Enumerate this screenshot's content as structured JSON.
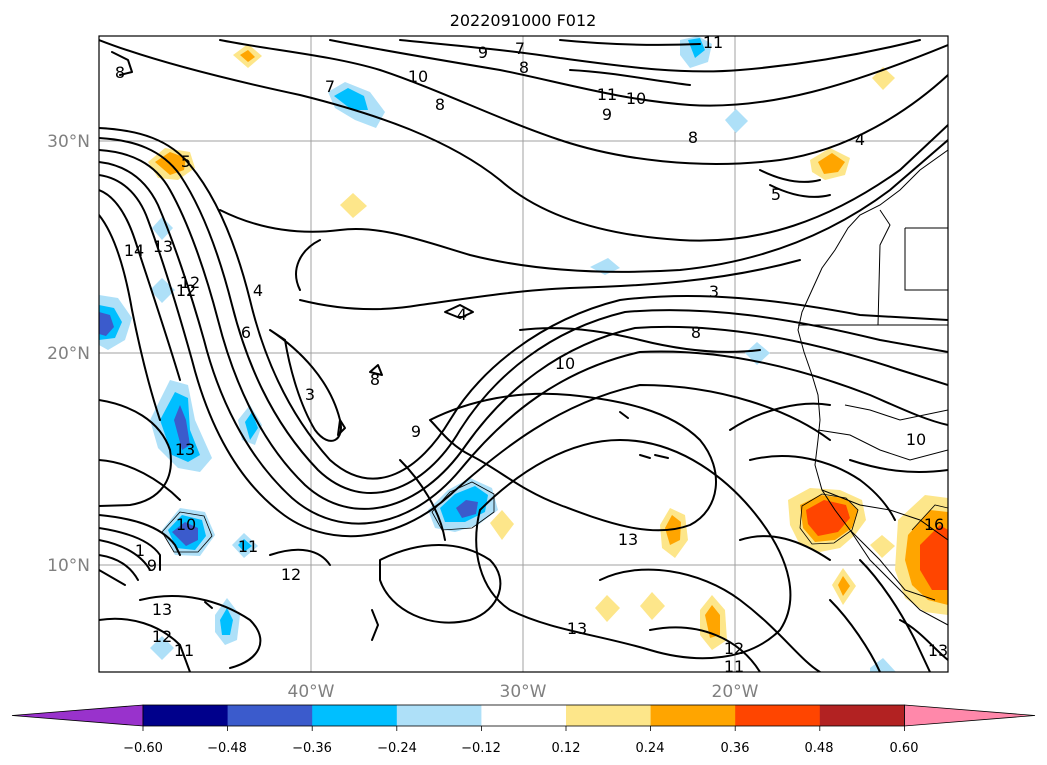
{
  "map": {
    "title": "2022091000 F012",
    "lat_ticks": [
      "30°N",
      "20°N",
      "10°N"
    ],
    "lon_ticks": [
      "40°W",
      "30°W",
      "20°W"
    ],
    "lat_range": [
      5,
      35
    ],
    "lon_range": [
      -50,
      -10
    ],
    "contour_labels": [
      "8",
      "9",
      "7",
      "8",
      "11",
      "10",
      "8",
      "11",
      "10",
      "9",
      "8",
      "7",
      "4",
      "5",
      "5",
      "14",
      "13",
      "12",
      "4",
      "6",
      "3",
      "4",
      "8",
      "3",
      "8",
      "10",
      "10",
      "9",
      "10",
      "12",
      "13",
      "13",
      "1",
      "9",
      "11",
      "12",
      "13",
      "12",
      "11",
      "13",
      "12",
      "11",
      "16",
      "13"
    ]
  },
  "colorbar": {
    "ticks": [
      "−0.60",
      "−0.48",
      "−0.36",
      "−0.24",
      "−0.12",
      "0.12",
      "0.24",
      "0.36",
      "0.48",
      "0.60"
    ],
    "colors": [
      "#9932cc",
      "#00008b",
      "#3b5bcc",
      "#00bfff",
      "#aee0f8",
      "#ffffff",
      "#fde68a",
      "#ffa500",
      "#ff4500",
      "#b22222",
      "#ff88aa"
    ],
    "extend": "both"
  }
}
